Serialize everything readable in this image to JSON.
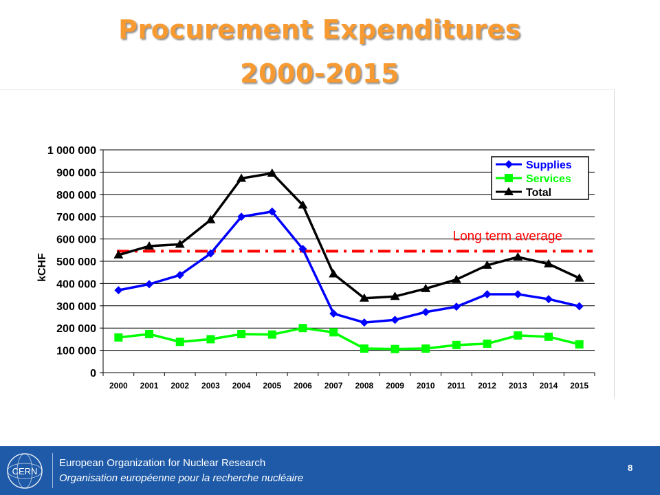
{
  "slide": {
    "title_line1": "Procurement Expenditures",
    "title_line2": "2000-2015",
    "page_number": "8"
  },
  "footer": {
    "org_name_en": "European Organization for Nuclear Research",
    "org_name_fr": "Organisation européenne pour la recherche nucléaire",
    "logo_text": "CERN",
    "background_color": "#1e5aa8"
  },
  "chart_data": {
    "type": "line",
    "ylabel": "kCHF",
    "xlabel": "",
    "ylim": [
      0,
      1000000
    ],
    "y_ticks": [
      0,
      100000,
      200000,
      300000,
      400000,
      500000,
      600000,
      700000,
      800000,
      900000,
      1000000
    ],
    "y_tick_labels": [
      "0",
      "100 000",
      "200 000",
      "300 000",
      "400 000",
      "500 000",
      "600 000",
      "700 000",
      "800 000",
      "900 000",
      "1 000 000"
    ],
    "categories": [
      "2000",
      "2001",
      "2002",
      "2003",
      "2004",
      "2005",
      "2006",
      "2007",
      "2008",
      "2009",
      "2010",
      "2011",
      "2012",
      "2013",
      "2014",
      "2015"
    ],
    "grid": "horizontal",
    "legend_position": "top-right",
    "series": [
      {
        "name": "Supplies",
        "color": "#0000ff",
        "marker": "diamond",
        "values": [
          370000,
          397000,
          438000,
          535000,
          700000,
          723000,
          555000,
          265000,
          225000,
          237000,
          272000,
          296000,
          352000,
          352000,
          330000,
          298000
        ]
      },
      {
        "name": "Services",
        "color": "#00ff00",
        "marker": "square",
        "values": [
          158000,
          173000,
          138000,
          150000,
          173000,
          171000,
          200000,
          181000,
          108000,
          106000,
          108000,
          124000,
          130000,
          167000,
          161000,
          127000
        ]
      },
      {
        "name": "Total",
        "color": "#000000",
        "marker": "triangle",
        "values": [
          528000,
          568000,
          576000,
          686000,
          872000,
          895000,
          752000,
          443000,
          334000,
          342000,
          377000,
          418000,
          482000,
          519000,
          488000,
          424000
        ]
      }
    ],
    "reference_line": {
      "label": "Long term average",
      "value": 545000,
      "color": "#ff0000",
      "style": "dash-dot"
    }
  }
}
